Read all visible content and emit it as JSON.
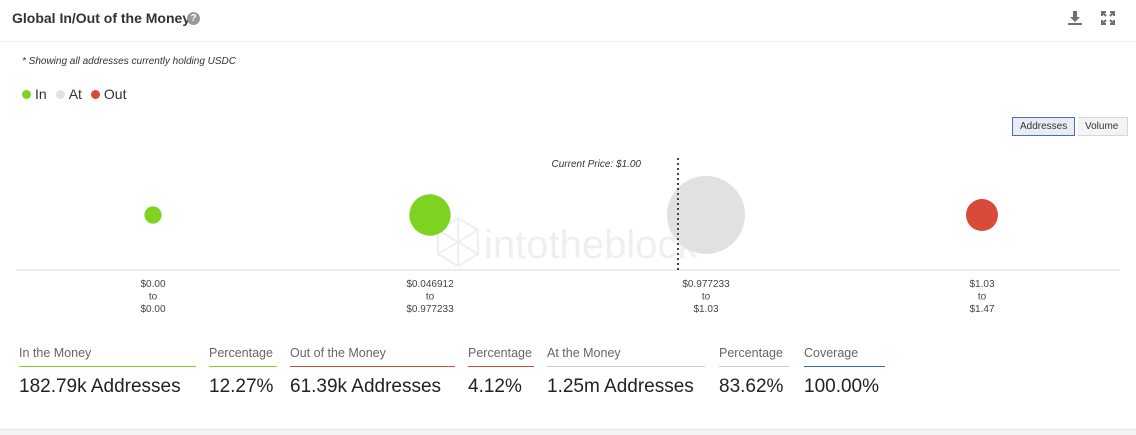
{
  "header": {
    "title": "Global In/Out of the Money",
    "help_glyph": "?",
    "download_icon": "download-icon",
    "expand_icon": "expand-icon"
  },
  "note": "* Showing all addresses currently holding USDC",
  "legend": [
    {
      "label": "In",
      "color": "#7ed321"
    },
    {
      "label": "At",
      "color": "#e1e1e1"
    },
    {
      "label": "Out",
      "color": "#d94a38"
    }
  ],
  "toggle": {
    "addresses": "Addresses",
    "volume": "Volume",
    "selected": "Addresses"
  },
  "chart_data": {
    "type": "bubble",
    "metric": "Addresses",
    "current_price_label": "Current Price: $1.00",
    "current_price": 1.0,
    "watermark": "intotheblock",
    "bubbles": [
      {
        "range": [
          "$0.00",
          "to",
          "$0.00"
        ],
        "status": "In",
        "color": "#7ed321",
        "relative_size": 0.22
      },
      {
        "range": [
          "$0.046912",
          "to",
          "$0.977233"
        ],
        "status": "In",
        "color": "#7ed321",
        "relative_size": 0.53
      },
      {
        "range": [
          "$0.977233",
          "to",
          "$1.03"
        ],
        "status": "At",
        "color": "#e1e1e1",
        "relative_size": 1.0
      },
      {
        "range": [
          "$1.03",
          "to",
          "$1.47"
        ],
        "status": "Out",
        "color": "#d94a38",
        "relative_size": 0.41
      }
    ]
  },
  "stats": [
    {
      "label": "In the Money",
      "value": "182.79k Addresses",
      "color": "#7ed321"
    },
    {
      "label": "Percentage",
      "value": "12.27%",
      "color": "#7ed321"
    },
    {
      "label": "Out of the Money",
      "value": "61.39k Addresses",
      "color": "#d94a38"
    },
    {
      "label": "Percentage",
      "value": "4.12%",
      "color": "#d94a38"
    },
    {
      "label": "At the Money",
      "value": "1.25m Addresses",
      "color": "#cccccc"
    },
    {
      "label": "Percentage",
      "value": "83.62%",
      "color": "#cccccc"
    },
    {
      "label": "Coverage",
      "value": "100.00%",
      "color": "#2c6fbf"
    }
  ]
}
